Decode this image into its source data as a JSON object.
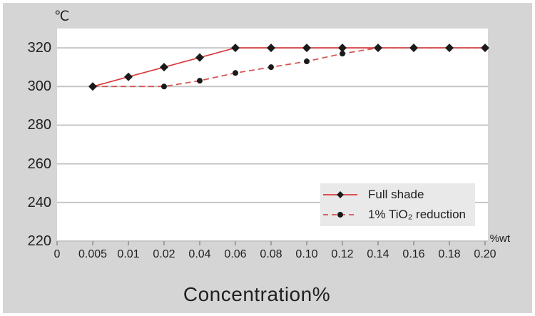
{
  "colors": {
    "panel_bg": "#d5d5d5",
    "plot_bg": "#ffffff",
    "grid": "#c6c6c6",
    "tick": "#9f9f9f",
    "text": "#1f1f1f",
    "legend_bg": "#e9e9e9",
    "solid_line": "#d93a3c",
    "dashed_line": "#d45050",
    "marker": "#1a1a1a"
  },
  "chart_data": {
    "type": "line",
    "title": "",
    "y_unit_label": "℃",
    "x_unit_label": "%wt",
    "xlabel": "Concentration%",
    "categories": [
      "0",
      "0.005",
      "0.01",
      "0.02",
      "0.04",
      "0.06",
      "0.08",
      "0.10",
      "0.12",
      "0.14",
      "0.16",
      "0.18",
      "0.20"
    ],
    "y_ticks": [
      320,
      300,
      280,
      260,
      240,
      220
    ],
    "y_axis": {
      "min": 220,
      "top": 330,
      "gridline_step": 20
    },
    "grid": "horizontal-only",
    "legend_position": "inside-bottom-right",
    "series": [
      {
        "name": "Full shade",
        "line_style": "solid",
        "marker": "diamond",
        "line_color": "#d93a3c",
        "marker_color": "#1a1a1a",
        "points": [
          [
            "0.005",
            300
          ],
          [
            "0.01",
            305
          ],
          [
            "0.02",
            310
          ],
          [
            "0.04",
            315
          ],
          [
            "0.06",
            320
          ],
          [
            "0.08",
            320
          ],
          [
            "0.10",
            320
          ],
          [
            "0.12",
            320
          ],
          [
            "0.14",
            320
          ],
          [
            "0.16",
            320
          ],
          [
            "0.18",
            320
          ],
          [
            "0.20",
            320
          ]
        ]
      },
      {
        "name": "1% TiO₂ reduction",
        "line_style": "dashed",
        "marker": "circle",
        "line_color": "#d45050",
        "marker_color": "#1a1a1a",
        "points": [
          [
            "0.005",
            300
          ],
          [
            "0.02",
            300
          ],
          [
            "0.04",
            303
          ],
          [
            "0.06",
            307
          ],
          [
            "0.08",
            310
          ],
          [
            "0.10",
            313
          ],
          [
            "0.12",
            317
          ],
          [
            "0.14",
            320
          ],
          [
            "0.16",
            320
          ],
          [
            "0.18",
            320
          ],
          [
            "0.20",
            320
          ]
        ]
      }
    ]
  }
}
